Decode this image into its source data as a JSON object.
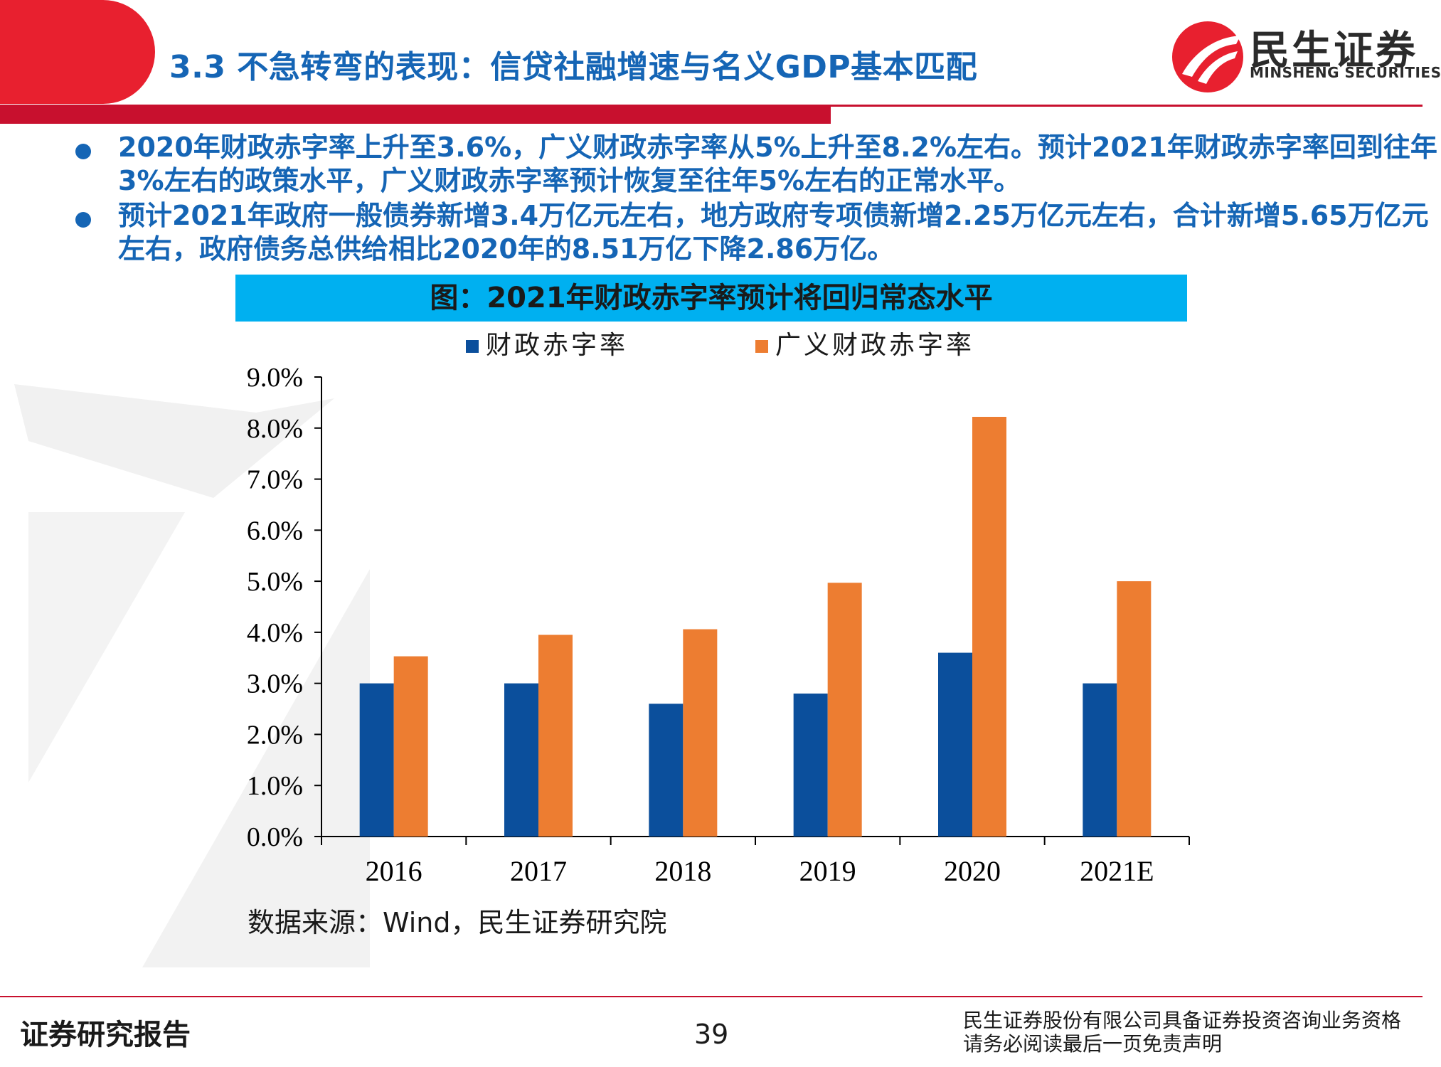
{
  "header": {
    "title": "3.3 不急转弯的表现：信贷社融增速与名义GDP基本匹配",
    "logo_cn": "民生证券",
    "logo_en": "MINSHENG SECURITIES"
  },
  "bullets": [
    "2020年财政赤字率上升至3.6%，广义财政赤字率从5%上升至8.2%左右。预计2021年财政赤字率回到往年3%左右的政策水平，广义财政赤字率预计恢复至往年5%左右的正常水平。",
    "预计2021年政府一般债券新增3.4万亿元左右，地方政府专项债新增2.25万亿元左右，合计新增5.65万亿元左右，政府债务总供给相比2020年的8.51万亿下降2.86万亿。"
  ],
  "chart_header": "图：2021年财政赤字率预计将回归常态水平",
  "chart_data": {
    "type": "bar",
    "categories": [
      "2016",
      "2017",
      "2018",
      "2019",
      "2020",
      "2021E"
    ],
    "series": [
      {
        "name": "财政赤字率",
        "color": "#0b4f9c",
        "values": [
          3.0,
          3.0,
          2.6,
          2.8,
          3.6,
          3.0
        ]
      },
      {
        "name": "广义财政赤字率",
        "color": "#ed7d31",
        "values": [
          3.53,
          3.95,
          4.06,
          4.97,
          8.22,
          5.0
        ]
      }
    ],
    "ylim": [
      0,
      9
    ],
    "yticks": [
      "0.0%",
      "1.0%",
      "2.0%",
      "3.0%",
      "4.0%",
      "5.0%",
      "6.0%",
      "7.0%",
      "8.0%",
      "9.0%"
    ],
    "legend_position": "top",
    "grid": false
  },
  "source": "数据来源：Wind，民生证券研究院",
  "footer": {
    "left": "证券研究报告",
    "page": "39",
    "right_line1": "民生证券股份有限公司具备证券投资咨询业务资格",
    "right_line2": "请务必阅读最后一页免责声明"
  },
  "colors": {
    "brand_red": "#c8102e",
    "title_blue": "#1565b5",
    "chart_header_bg": "#00b0f0"
  },
  "icons": [
    "minsheng-logo-icon",
    "bullet-dot-icon",
    "legend-swatch-icon"
  ]
}
